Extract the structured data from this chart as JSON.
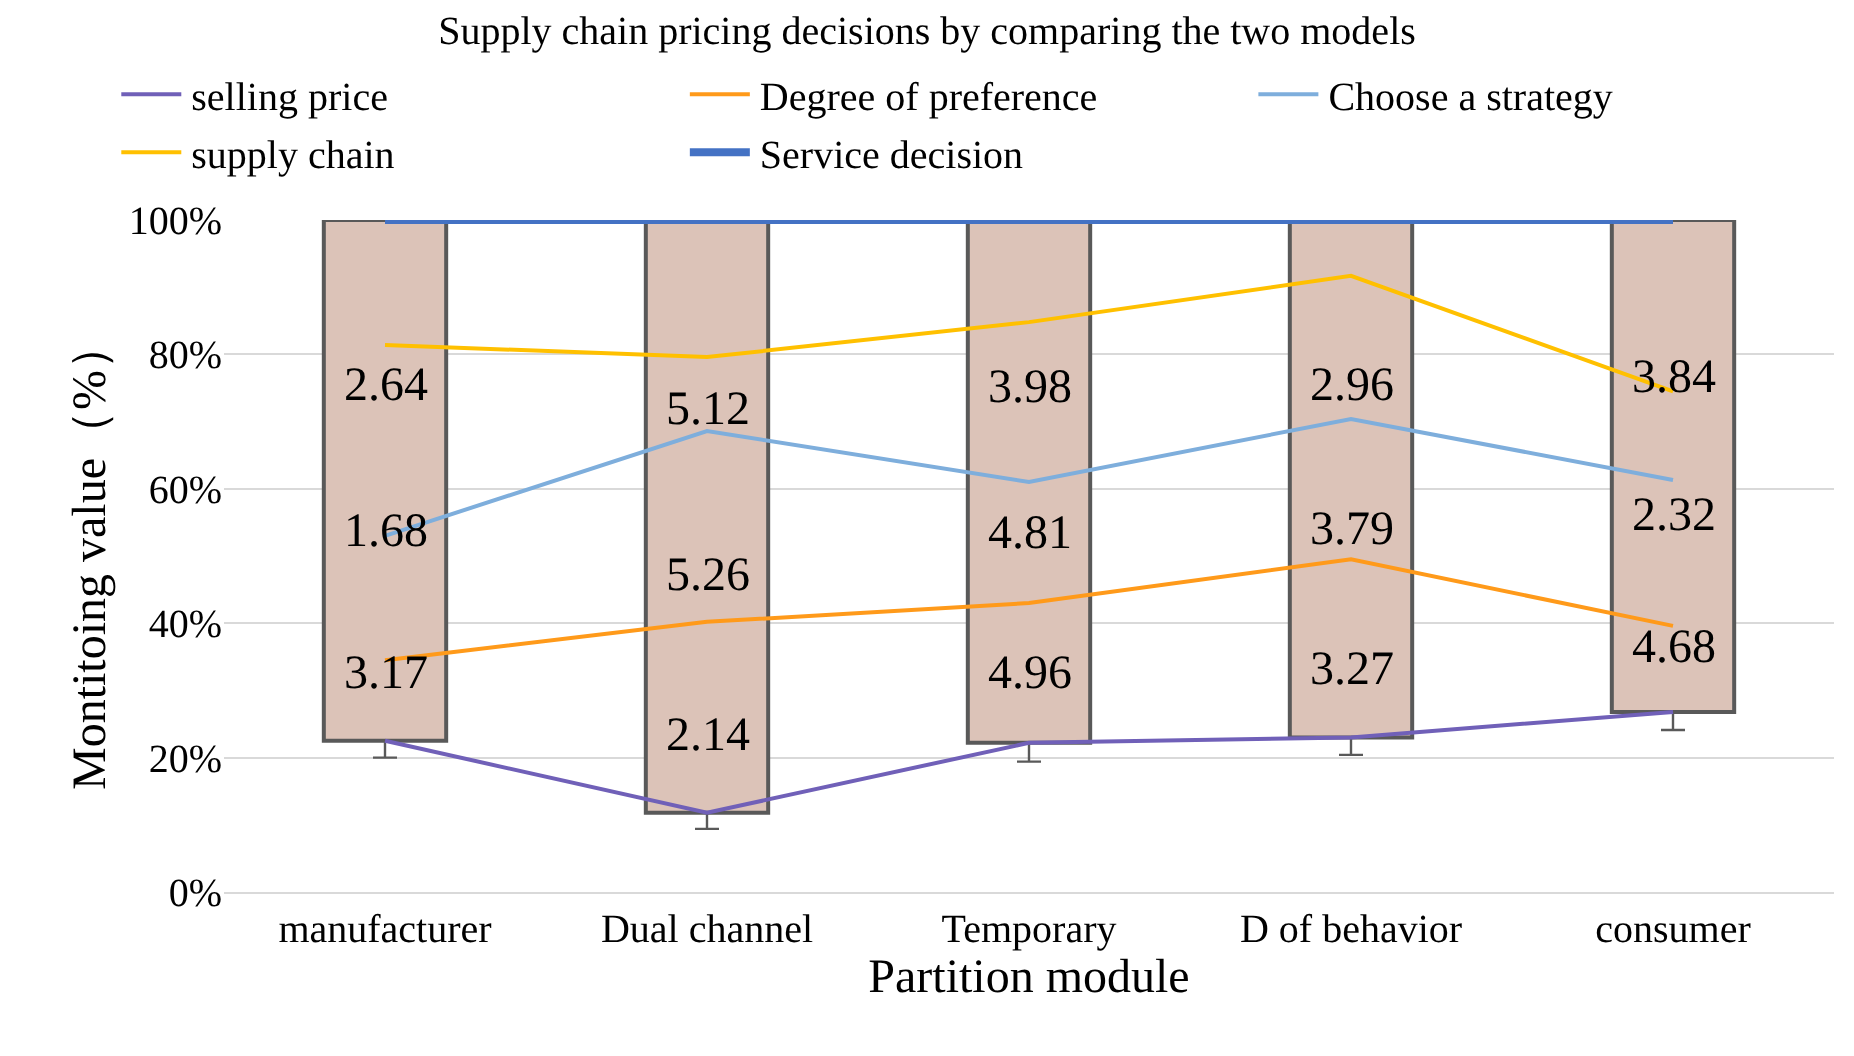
{
  "chart_data": {
    "type": "bar",
    "title": "Supply chain pricing decisions by comparing the two models",
    "xlabel": "Partition module",
    "ylabel": "Montitoing value（%）",
    "categories": [
      "manufacturer",
      "Dual channel",
      "Temporary",
      "D of behavior",
      "consumer"
    ],
    "base": [
      22.5,
      11.8,
      22.2,
      23.0,
      26.8
    ],
    "values": [
      77.5,
      88.2,
      77.8,
      77.0,
      73.2
    ],
    "color": "#dcc3b8",
    "series": [
      {
        "type": "line",
        "name": "selling price",
        "color": "#7060b8",
        "values": [
          22.5,
          11.8,
          22.2,
          23.0,
          26.8
        ],
        "errors": [
          [
            20,
            22.5
          ],
          [
            9.4,
            11.8
          ],
          [
            19.4,
            22.2
          ],
          [
            20.4,
            23.0
          ],
          [
            24.1,
            26.8
          ]
        ]
      },
      {
        "type": "line",
        "name": "Degree of preference",
        "color": "#ff9a1a",
        "values": [
          34.5,
          40.2,
          43.0,
          49.5,
          39.6
        ]
      },
      {
        "type": "line",
        "name": "Choose a strategy",
        "color": "#7eaedc",
        "values": [
          53.0,
          68.6,
          61.0,
          70.4,
          61.3
        ]
      },
      {
        "type": "line",
        "name": "supply chain",
        "color": "#ffc000",
        "values": [
          81.4,
          79.6,
          84.8,
          91.7,
          74.5
        ]
      },
      {
        "type": "line",
        "name": "Service decision",
        "color": "#4472c4",
        "values": [
          100,
          100,
          100,
          100,
          100
        ]
      }
    ],
    "annotations": [
      "3.17",
      "1.68",
      "2.64",
      "2.14",
      "5.26",
      "5.12",
      "4.96",
      "4.81",
      "3.98",
      "3.27",
      "3.79",
      "2.96",
      "4.68",
      "2.32",
      "3.84"
    ],
    "ylim": [
      0,
      100
    ],
    "yticks": [
      {
        "value": 0,
        "label": "0%"
      },
      {
        "value": 20,
        "label": "20%"
      },
      {
        "value": 40,
        "label": "40%"
      },
      {
        "value": 60,
        "label": "60%"
      },
      {
        "value": 80,
        "label": "80%"
      },
      {
        "value": 100,
        "label": "100%"
      }
    ],
    "grid": "y",
    "legend": "top"
  }
}
